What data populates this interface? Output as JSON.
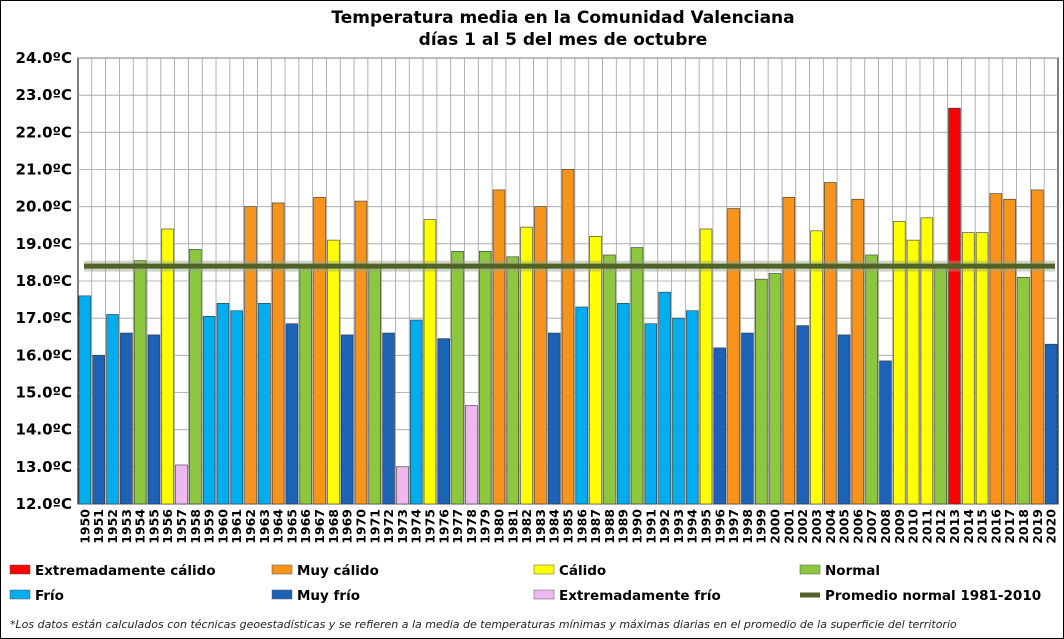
{
  "chart_data": {
    "type": "bar",
    "title": "Temperatura media en la Comunidad Valenciana",
    "subtitle": "días 1 al 5 del mes de octubre",
    "ylim": [
      12.0,
      24.0
    ],
    "y_ticks": [
      12,
      13,
      14,
      15,
      16,
      17,
      18,
      19,
      20,
      21,
      22,
      23,
      24
    ],
    "y_tick_labels": [
      "12.0ºC",
      "13.0ºC",
      "14.0ºC",
      "15.0ºC",
      "16.0ºC",
      "17.0ºC",
      "18.0ºC",
      "19.0ºC",
      "20.0ºC",
      "21.0ºC",
      "22.0ºC",
      "23.0ºC",
      "24.0ºC"
    ],
    "grid": true,
    "categories": [
      "1950",
      "1951",
      "1952",
      "1953",
      "1954",
      "1955",
      "1956",
      "1957",
      "1958",
      "1959",
      "1960",
      "1961",
      "1962",
      "1963",
      "1964",
      "1965",
      "1966",
      "1967",
      "1968",
      "1969",
      "1970",
      "1971",
      "1972",
      "1973",
      "1974",
      "1975",
      "1976",
      "1977",
      "1978",
      "1979",
      "1980",
      "1981",
      "1982",
      "1983",
      "1984",
      "1985",
      "1986",
      "1987",
      "1988",
      "1989",
      "1990",
      "1991",
      "1992",
      "1993",
      "1994",
      "1995",
      "1996",
      "1997",
      "1998",
      "1999",
      "2000",
      "2001",
      "2002",
      "2003",
      "2004",
      "2005",
      "2006",
      "2007",
      "2008",
      "2009",
      "2010",
      "2011",
      "2012",
      "2013",
      "2014",
      "2015",
      "2016",
      "2017",
      "2018",
      "2019",
      "2020"
    ],
    "values": [
      17.6,
      16.0,
      17.1,
      16.6,
      18.55,
      16.55,
      19.4,
      13.05,
      18.85,
      17.05,
      17.4,
      17.2,
      20.0,
      17.4,
      20.1,
      16.85,
      18.4,
      20.25,
      19.1,
      16.55,
      20.15,
      18.4,
      16.6,
      13.0,
      16.95,
      19.65,
      16.45,
      18.8,
      14.65,
      18.8,
      20.45,
      18.65,
      19.45,
      20.0,
      16.6,
      21.0,
      17.3,
      19.2,
      18.7,
      17.4,
      18.9,
      16.85,
      17.7,
      17.0,
      17.2,
      19.4,
      16.2,
      19.95,
      16.6,
      18.05,
      18.2,
      20.25,
      16.8,
      19.35,
      20.65,
      16.55,
      20.2,
      18.7,
      15.85,
      19.6,
      19.1,
      19.7,
      18.4,
      22.65,
      19.3,
      19.3,
      20.35,
      20.2,
      18.1,
      20.45,
      16.3
    ],
    "classes": [
      "F",
      "MF",
      "F",
      "MF",
      "N",
      "MF",
      "C",
      "EF",
      "N",
      "F",
      "F",
      "F",
      "MC",
      "F",
      "MC",
      "MF",
      "N",
      "MC",
      "C",
      "MF",
      "MC",
      "N",
      "MF",
      "EF",
      "F",
      "C",
      "MF",
      "N",
      "EF",
      "N",
      "MC",
      "N",
      "C",
      "MC",
      "MF",
      "MC",
      "F",
      "C",
      "N",
      "F",
      "N",
      "F",
      "F",
      "F",
      "F",
      "C",
      "MF",
      "MC",
      "MF",
      "N",
      "N",
      "MC",
      "MF",
      "C",
      "MC",
      "MF",
      "MC",
      "N",
      "MF",
      "C",
      "C",
      "C",
      "N",
      "EC",
      "C",
      "C",
      "MC",
      "MC",
      "N",
      "MC",
      "MF"
    ],
    "reference_line": {
      "name": "Promedio normal 1981-2010",
      "value": 18.4,
      "color": "#4f6228"
    },
    "legend": [
      {
        "key": "EC",
        "label": "Extremadamente cálido",
        "color": "#ff0000"
      },
      {
        "key": "MC",
        "label": "Muy cálido",
        "color": "#f7941d"
      },
      {
        "key": "C",
        "label": "Cálido",
        "color": "#ffff00"
      },
      {
        "key": "N",
        "label": "Normal",
        "color": "#8dc63f"
      },
      {
        "key": "F",
        "label": "Frío",
        "color": "#00aeef"
      },
      {
        "key": "MF",
        "label": "Muy frío",
        "color": "#1c63b7"
      },
      {
        "key": "EF",
        "label": "Extremadamente frío",
        "color": "#f0b8f0"
      },
      {
        "key": "PN",
        "label": "Promedio normal 1981-2010",
        "color": "#4f6228"
      }
    ]
  },
  "footnote": "*Los datos están calculados con técnicas geoestadísticas y se refieren a la media de temperaturas mínimas y máximas diarias en el promedio de la superficie del territorio"
}
